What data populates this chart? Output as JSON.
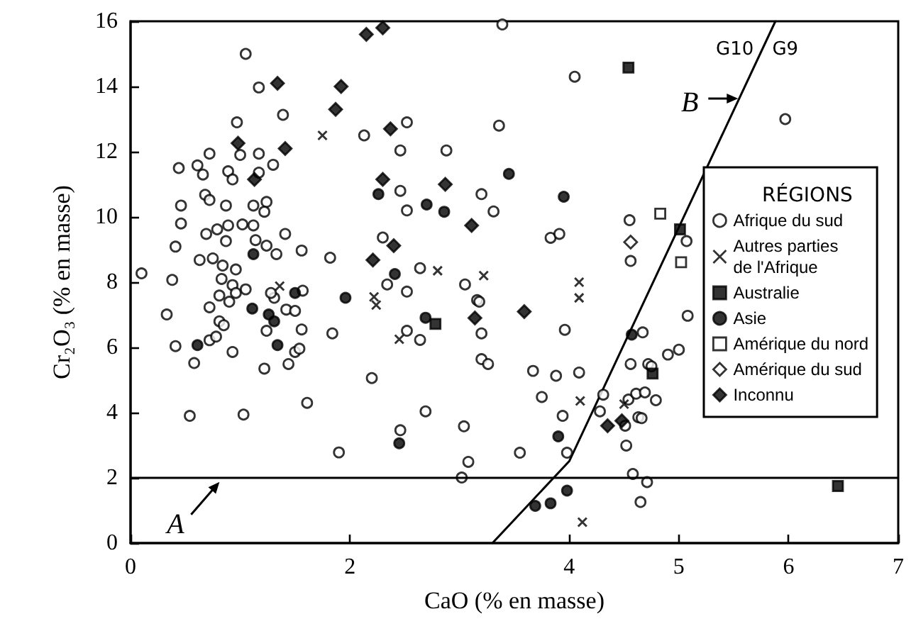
{
  "chart_data": {
    "type": "scatter",
    "xlabel": "CaO (% en masse)",
    "ylabel": "Cr₂O₃ (% en masse)",
    "legend_title": "RÉGIONS",
    "legend": "right",
    "grid": false,
    "xlim": [
      0,
      7
    ],
    "xticks": [
      0,
      2,
      4,
      5,
      6,
      7
    ],
    "ylim": [
      0,
      16
    ],
    "yticks": [
      0,
      2,
      4,
      6,
      8,
      10,
      12,
      14,
      16
    ],
    "ref_lines": [
      {
        "axis": "y",
        "value": 2
      }
    ],
    "annotations": [
      "G10",
      "G9",
      "A",
      "B"
    ],
    "series": [
      {
        "name": "Afrique du sud",
        "color": "#ffffff",
        "marker": "circle",
        "x": [
          1.05,
          1.17,
          1.39,
          0.97,
          2.13,
          0.72,
          1.0,
          1.17,
          0.44,
          0.61,
          0.66,
          0.89,
          0.93,
          1.17,
          1.3,
          0.68,
          0.72,
          0.46,
          0.87,
          1.12,
          1.24,
          1.22,
          0.46,
          0.69,
          0.79,
          0.89,
          1.02,
          1.12,
          0.87,
          1.14,
          1.41,
          1.24,
          0.41,
          0.63,
          0.75,
          1.33,
          1.56,
          1.82,
          0.1,
          0.84,
          0.96,
          0.83,
          0.38,
          0.93,
          1.05,
          3.39,
          4.05,
          2.52,
          3.36,
          2.46,
          2.88,
          2.46,
          3.2,
          2.52,
          3.31,
          3.83,
          3.91,
          4.55,
          4.56,
          2.3,
          2.64,
          2.34,
          2.52,
          3.05,
          3.16,
          3.18,
          2.52,
          2.64,
          3.2,
          3.96,
          3.2,
          3.26,
          2.2,
          3.67,
          3.88,
          4.09,
          3.75,
          3.94,
          2.69,
          2.46,
          3.04,
          3.55,
          3.98,
          3.08,
          3.02,
          4.31,
          4.28,
          4.67,
          4.56,
          4.54,
          4.61,
          4.69,
          4.51,
          4.52,
          4.63,
          4.66,
          4.58,
          4.65,
          4.72,
          4.71,
          0.33,
          0.41,
          0.58,
          0.72,
          0.81,
          0.85,
          0.72,
          0.78,
          0.93,
          0.9,
          0.81,
          0.96,
          1.22,
          1.24,
          1.31,
          1.42,
          1.5,
          1.56,
          1.44,
          1.5,
          1.54,
          1.57,
          1.28,
          1.84,
          0.54,
          1.03,
          1.61,
          1.9,
          5.07,
          5.97,
          5.08,
          4.9,
          5.0,
          4.75,
          4.79
        ],
        "values": [
          15.0,
          13.97,
          13.13,
          12.9,
          12.5,
          11.94,
          11.9,
          11.94,
          11.5,
          11.58,
          11.3,
          11.4,
          11.15,
          11.36,
          11.6,
          10.68,
          10.52,
          10.35,
          10.35,
          10.35,
          10.46,
          10.16,
          9.8,
          9.48,
          9.62,
          9.74,
          9.77,
          9.74,
          9.26,
          9.29,
          9.48,
          9.12,
          9.09,
          8.68,
          8.73,
          8.86,
          8.97,
          8.75,
          8.27,
          8.51,
          8.39,
          8.1,
          8.07,
          7.91,
          7.78,
          15.9,
          14.3,
          12.9,
          12.8,
          12.04,
          12.04,
          10.8,
          10.7,
          10.2,
          10.17,
          9.36,
          9.48,
          9.9,
          8.65,
          9.37,
          8.43,
          7.93,
          7.71,
          7.93,
          7.45,
          7.4,
          6.51,
          6.23,
          6.43,
          6.54,
          5.64,
          5.49,
          5.06,
          5.28,
          5.13,
          5.23,
          4.48,
          3.9,
          4.04,
          3.46,
          3.58,
          2.77,
          2.77,
          2.49,
          2.01,
          4.55,
          4.04,
          6.46,
          5.49,
          4.4,
          4.58,
          4.62,
          3.6,
          2.99,
          3.86,
          3.83,
          2.12,
          1.26,
          5.49,
          1.87,
          7.01,
          6.04,
          5.52,
          7.23,
          6.8,
          6.68,
          6.22,
          6.33,
          5.86,
          7.4,
          7.59,
          7.67,
          5.35,
          6.51,
          7.52,
          7.16,
          7.12,
          6.55,
          5.49,
          5.86,
          5.96,
          7.74,
          7.67,
          6.43,
          3.9,
          3.94,
          4.3,
          2.78,
          9.26,
          13.0,
          6.97,
          5.78,
          5.93,
          5.42,
          4.38
        ]
      },
      {
        "name": "Autres parties de l'Afrique",
        "color": "#000000",
        "marker": "cross",
        "x": [
          1.75,
          2.8,
          3.22,
          4.09,
          4.09,
          2.22,
          2.24,
          2.45,
          4.1,
          4.12,
          4.5,
          1.36
        ],
        "values": [
          12.5,
          8.35,
          8.2,
          8.0,
          7.52,
          7.55,
          7.3,
          6.25,
          4.36,
          0.64,
          4.26,
          7.88
        ]
      },
      {
        "name": "Australie",
        "color": "#000000",
        "marker": "square",
        "x": [
          4.54,
          5.01,
          4.76,
          6.45,
          2.78
        ],
        "values": [
          14.58,
          9.62,
          5.2,
          1.75,
          6.72
        ]
      },
      {
        "name": "Asie",
        "color": "#000000",
        "marker": "circle",
        "x": [
          1.12,
          2.26,
          2.7,
          2.86,
          3.45,
          3.95,
          2.41,
          2.69,
          2.45,
          3.9,
          3.98,
          3.83,
          3.69,
          4.57,
          0.61,
          1.11,
          1.26,
          1.31,
          1.34,
          1.5,
          1.96
        ],
        "values": [
          8.86,
          10.7,
          10.38,
          10.16,
          11.32,
          10.62,
          8.25,
          6.91,
          3.06,
          3.27,
          1.61,
          1.22,
          1.14,
          6.39,
          6.07,
          7.19,
          7.01,
          6.8,
          6.07,
          7.67,
          7.52
        ]
      },
      {
        "name": "Amérique du nord",
        "color": "#ffffff",
        "marker": "square",
        "x": [
          4.83,
          5.02
        ],
        "values": [
          10.1,
          8.61
        ]
      },
      {
        "name": "Amérique du sud",
        "color": "#ffffff",
        "marker": "diamond",
        "x": [
          4.56
        ],
        "values": [
          9.23
        ]
      },
      {
        "name": "Inconnu",
        "color": "#000000",
        "marker": "diamond",
        "x": [
          2.15,
          2.3,
          1.34,
          1.92,
          1.87,
          0.98,
          1.41,
          1.13,
          2.21,
          2.3,
          2.37,
          2.87,
          3.11,
          2.4,
          3.59,
          3.14,
          4.35,
          4.48
        ],
        "values": [
          15.6,
          15.8,
          14.1,
          14.0,
          13.3,
          12.26,
          12.1,
          11.15,
          8.68,
          11.15,
          12.7,
          11.0,
          9.74,
          9.12,
          7.1,
          6.9,
          3.6,
          3.75
        ]
      },
      {
        "type": "line",
        "color": "#000000",
        "marker": "none",
        "line_style": "solid",
        "x": [
          3.3,
          4,
          5.88
        ],
        "values": [
          0,
          2.51,
          16
        ]
      }
    ]
  }
}
